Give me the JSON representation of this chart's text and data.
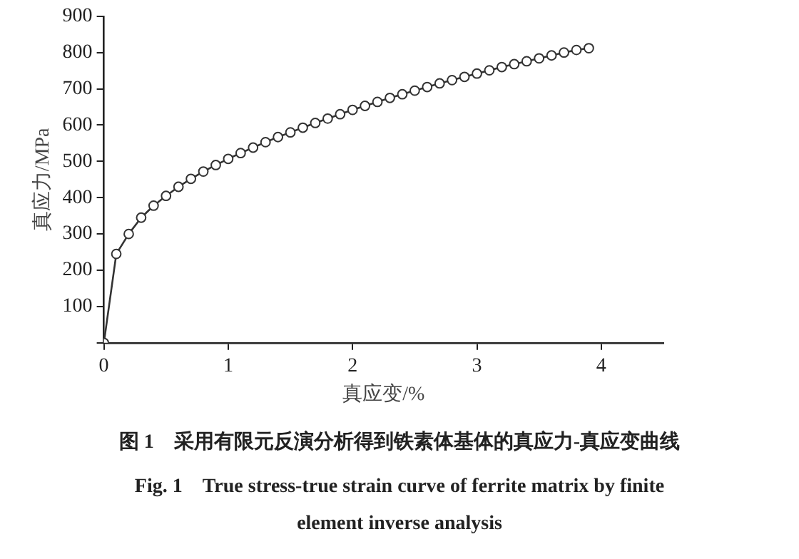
{
  "chart_data": {
    "type": "line",
    "title": "图 1　采用有限元反演分析得到铁素体基体的真应力-真应变曲线",
    "subtitle": "Fig. 1　True stress-true strain curve of ferrite matrix by finite element inverse analysis",
    "xlabel": "真应变/%",
    "ylabel": "真应力/MPa",
    "x": [
      0,
      0.1,
      0.2,
      0.3,
      0.4,
      0.5,
      0.6,
      0.7,
      0.8,
      0.9,
      1.0,
      1.1,
      1.2,
      1.3,
      1.4,
      1.5,
      1.6,
      1.7,
      1.8,
      1.9,
      2.0,
      2.1,
      2.2,
      2.3,
      2.4,
      2.5,
      2.6,
      2.7,
      2.8,
      2.9,
      3.0,
      3.1,
      3.2,
      3.3,
      3.4,
      3.5,
      3.6,
      3.7,
      3.8,
      3.9
    ],
    "series": [
      {
        "color": "#333333",
        "values": [
          0,
          245,
          300,
          345,
          378,
          405,
          430,
          452,
          472,
          490,
          507,
          523,
          538,
          553,
          567,
          580,
          593,
          606,
          618,
          630,
          642,
          653,
          664,
          675,
          685,
          695,
          705,
          715,
          724,
          733,
          742,
          751,
          760,
          768,
          776,
          784,
          792,
          800,
          807,
          812
        ]
      }
    ],
    "xlim": [
      0,
      4.5
    ],
    "xticks": [
      0,
      1,
      2,
      3,
      4
    ],
    "ylim": [
      0,
      900
    ],
    "yticks": [
      {
        "value": 0,
        "label": null
      },
      100,
      200,
      300,
      400,
      500,
      600,
      700,
      800,
      900
    ],
    "marker": "circle",
    "line_style": "solid",
    "grid": false,
    "legend": false
  }
}
